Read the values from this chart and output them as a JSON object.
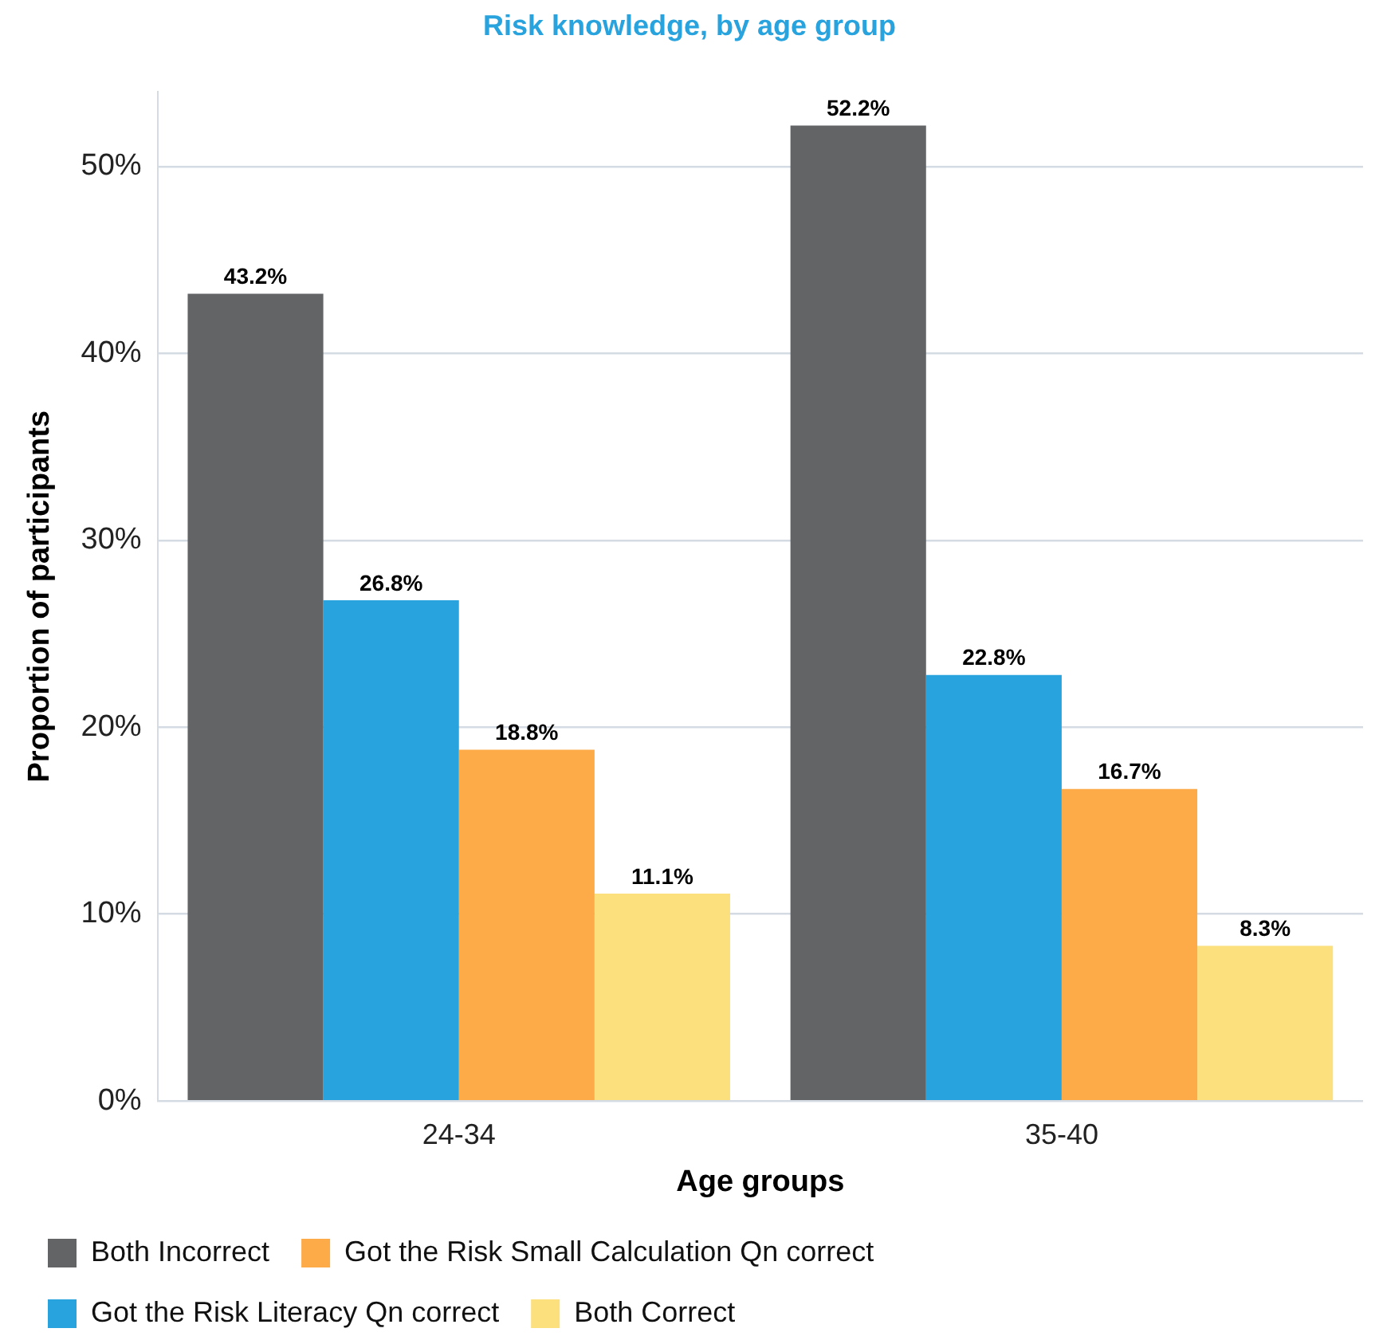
{
  "chart_data": {
    "type": "bar",
    "title": "Risk knowledge, by age group",
    "xlabel": "Age groups",
    "ylabel": "Proportion of participants",
    "categories": [
      "24-34",
      "35-40"
    ],
    "series": [
      {
        "name": "Both Incorrect",
        "color": "#636466",
        "values": [
          43.2,
          52.2
        ],
        "value_labels": [
          "43.2%",
          "52.2%"
        ]
      },
      {
        "name": "Got the Risk Literacy Qn correct",
        "color": "#29a3dd",
        "values": [
          26.8,
          22.8
        ],
        "value_labels": [
          "26.8%",
          "22.8%"
        ]
      },
      {
        "name": "Got the Risk Small Calculation Qn correct",
        "color": "#fdaa48",
        "values": [
          18.8,
          16.7
        ],
        "value_labels": [
          "18.8%",
          "16.7%"
        ]
      },
      {
        "name": "Both Correct",
        "color": "#fbe07d",
        "values": [
          11.1,
          8.3
        ],
        "value_labels": [
          "11.1%",
          "8.3%"
        ]
      }
    ],
    "ylim": [
      0,
      54
    ],
    "yticks": [
      {
        "value": 0,
        "label": "0%"
      },
      {
        "value": 10,
        "label": "10%"
      },
      {
        "value": 20,
        "label": "20%"
      },
      {
        "value": 30,
        "label": "30%"
      },
      {
        "value": 40,
        "label": "40%"
      },
      {
        "value": 50,
        "label": "50%"
      }
    ],
    "grid": "y",
    "legend": "bottom"
  }
}
